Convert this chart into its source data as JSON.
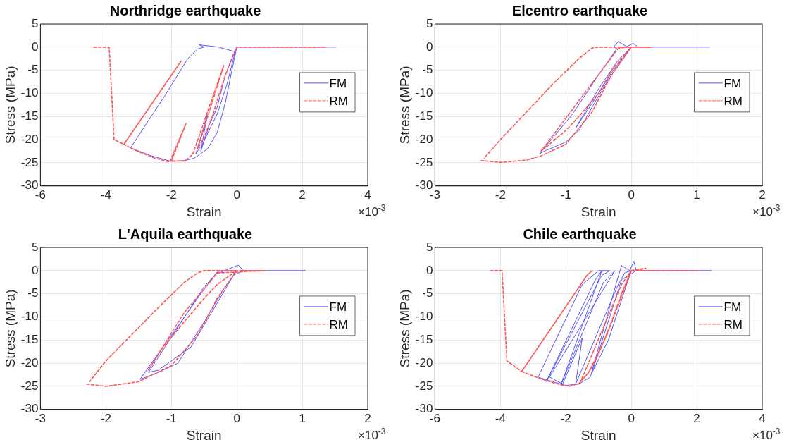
{
  "chart_data": [
    {
      "type": "line",
      "title": "Northridge earthquake",
      "xlabel": "Strain",
      "ylabel": "Stress (MPa)",
      "annotations": [
        "×10$^{-3}$"
      ],
      "xlim": [
        -6,
        4
      ],
      "xticks": [
        -6,
        -4,
        -2,
        0,
        2,
        4
      ],
      "ylim": [
        -30,
        5
      ],
      "yticks": [
        -30,
        -25,
        -20,
        -15,
        -10,
        -5,
        0,
        5
      ],
      "grid": true,
      "legend": "right",
      "series": [
        {
          "name": "FM",
          "color": "#5555ff",
          "line_style": "solid",
          "x": [
            3.05,
            0,
            -0.15,
            -0.35,
            -0.6,
            -0.9,
            -1.3,
            -1.6,
            -2.0,
            -2.6,
            -3.25,
            -2.2,
            -1.5,
            -1.2,
            -1.0,
            -1.15,
            -0.55,
            -0.05,
            -0.3,
            -0.6,
            -0.85,
            -1.05,
            -1.25,
            -0.9,
            -1.1,
            -0.85,
            -0.6,
            -0.35,
            0
          ],
          "values": [
            0,
            0,
            -5,
            -12,
            -18.5,
            -22,
            -24,
            -24.5,
            -24.7,
            -23.5,
            -21.8,
            -10.5,
            -2.5,
            -0.4,
            0,
            0.5,
            0,
            -1,
            -8,
            -14.5,
            -18,
            -21,
            -23,
            -14.6,
            -22.5,
            -17,
            -13,
            -6,
            0
          ]
        },
        {
          "name": "RM",
          "color": "#ff5555",
          "line_style": "dashed",
          "x": [
            2.7,
            0,
            -0.1,
            -0.4,
            -0.75,
            -1.0,
            -1.2,
            -0.4,
            -1.35,
            -1.6,
            -2.0,
            -1.55,
            -2.05,
            -2.5,
            -3.0,
            -3.45,
            -1.7,
            -3.45,
            -3.75,
            -3.9,
            -4.4
          ],
          "values": [
            0,
            0,
            -1.5,
            -7,
            -15,
            -19.5,
            -22,
            -4,
            -23.2,
            -24.6,
            -24.6,
            -16.5,
            -24.8,
            -24,
            -22.6,
            -21,
            -3,
            -21,
            -20,
            0,
            0
          ]
        }
      ]
    },
    {
      "type": "line",
      "title": "Elcentro earthquake",
      "xlabel": "Strain",
      "ylabel": "Stress (MPa)",
      "annotations": [
        "×10$^{-3}$"
      ],
      "xlim": [
        -3,
        2
      ],
      "xticks": [
        -3,
        -2,
        -1,
        0,
        1,
        2
      ],
      "ylim": [
        -30,
        5
      ],
      "yticks": [
        -30,
        -25,
        -20,
        -15,
        -10,
        -5,
        0,
        5
      ],
      "grid": true,
      "legend": "right",
      "series": [
        {
          "name": "FM",
          "color": "#5555ff",
          "line_style": "solid",
          "x": [
            1.2,
            0.1,
            0.03,
            -0.07,
            -0.2,
            -0.27,
            -0.22,
            -0.5,
            -0.9,
            -1.4,
            -1.3,
            -1.0,
            -0.8,
            -0.6,
            -0.35,
            0,
            -0.2,
            -0.5,
            -0.85,
            -0.5,
            -0.3,
            0
          ],
          "values": [
            0,
            0,
            0.8,
            0.1,
            1.2,
            0,
            -0.3,
            -6,
            -14.5,
            -23,
            -22.3,
            -20.5,
            -18,
            -13,
            -7,
            0,
            -2.8,
            -9,
            -17.5,
            -10,
            -5.5,
            0
          ]
        },
        {
          "name": "RM",
          "color": "#ff5555",
          "line_style": "dashed",
          "x": [
            -2.3,
            -2.0,
            -1.6,
            -1.38,
            -1.0,
            -0.6,
            -0.3,
            0,
            -0.3,
            -0.5,
            -0.8,
            -1.0,
            -1.38,
            -0.2,
            -0.1,
            0.3,
            -0.5,
            -0.6,
            -0.8,
            -1.2,
            -2.0,
            -2.25
          ],
          "values": [
            -24.5,
            -24.9,
            -24.4,
            -23.5,
            -21,
            -14,
            -6,
            0,
            -5,
            -10,
            -15,
            -18,
            -22.5,
            -0.3,
            0,
            0,
            0,
            -0.2,
            -2.5,
            -8,
            -20,
            -24
          ]
        }
      ]
    },
    {
      "type": "line",
      "title": "L'Aquila earthquake",
      "xlabel": "Strain",
      "ylabel": "Stress (MPa)",
      "annotations": [
        "×10$^{-3}$"
      ],
      "xlim": [
        -3,
        2
      ],
      "xticks": [
        -3,
        -2,
        -1,
        0,
        1,
        2
      ],
      "ylim": [
        -30,
        5
      ],
      "yticks": [
        -30,
        -25,
        -20,
        -15,
        -10,
        -5,
        0,
        5
      ],
      "grid": true,
      "legend": "right",
      "series": [
        {
          "name": "FM",
          "color": "#5555ff",
          "line_style": "solid",
          "x": [
            1.05,
            0.1,
            0.02,
            -0.25,
            -0.3,
            -0.5,
            -0.9,
            -1.48,
            -1.2,
            -0.9,
            -0.7,
            -0.45,
            -0.2,
            0,
            -0.28,
            -0.5,
            -1.35,
            -1.2,
            -0.7,
            -0.3,
            -0.05,
            0.1
          ],
          "values": [
            0,
            0,
            1.2,
            -0.4,
            -0.3,
            -4,
            -12,
            -23.5,
            -22,
            -20,
            -15.5,
            -10,
            -4,
            0,
            -0.1,
            -3.5,
            -22,
            -21.5,
            -16.5,
            -7,
            -1,
            0
          ]
        },
        {
          "name": "RM",
          "color": "#ff5555",
          "line_style": "dashed",
          "x": [
            -2.3,
            -2.0,
            -1.5,
            -1.0,
            -0.6,
            -0.3,
            0,
            -0.3,
            -0.5,
            -0.8,
            -1.15,
            -1.35,
            -0.8,
            -0.5,
            -0.3,
            0.45,
            -0.5,
            -0.6,
            -0.8,
            -1.2,
            -2.0,
            -2.25
          ],
          "values": [
            -24.5,
            -25,
            -24,
            -20.5,
            -14,
            -6,
            0,
            -3,
            -6,
            -11,
            -17,
            -21.5,
            -9,
            -4,
            -0.5,
            0,
            0,
            -0.5,
            -2.5,
            -8,
            -19.5,
            -24
          ]
        }
      ]
    },
    {
      "type": "line",
      "title": "Chile earthquake",
      "xlabel": "Strain",
      "ylabel": "Stress (MPa)",
      "annotations": [
        "×10$^{-3}$"
      ],
      "xlim": [
        -6,
        4
      ],
      "xticks": [
        -6,
        -4,
        -2,
        0,
        2,
        4
      ],
      "ylim": [
        -30,
        5
      ],
      "yticks": [
        -30,
        -25,
        -20,
        -15,
        -10,
        -5,
        0,
        5
      ],
      "grid": true,
      "legend": "right",
      "series": [
        {
          "name": "FM",
          "color": "#5555ff",
          "line_style": "solid",
          "x": [
            2.45,
            0.15,
            0.08,
            -0.05,
            -0.3,
            -0.45,
            -0.9,
            -1.25,
            -1.6,
            -2.0,
            -2.4,
            -2.85,
            -1.5,
            -1.0,
            -0.65,
            -0.9,
            -2.6,
            -1.1,
            -0.9,
            -2.15,
            -0.85,
            -0.5,
            -2.5,
            -2.1,
            -1.5,
            -1.7,
            -0.4,
            -0.2,
            0,
            -0.7,
            -1.2,
            -0.3,
            0.15
          ],
          "values": [
            0,
            0,
            2,
            0,
            1.1,
            -2.5,
            -14,
            -23,
            -24.5,
            -24.8,
            -24,
            -23,
            -3,
            0,
            0,
            -1,
            -24,
            -2,
            0,
            -24.7,
            -2.5,
            0,
            -23,
            -24.5,
            -14.6,
            -24.5,
            -3,
            -0.5,
            0,
            -15,
            -22,
            -2,
            0
          ]
        },
        {
          "name": "RM",
          "color": "#ff5555",
          "line_style": "dashed",
          "x": [
            2.0,
            0.15,
            0.45,
            0,
            -0.3,
            -1.55,
            -1.3,
            -0.75,
            0,
            -0.3,
            -0.6,
            -1.0,
            -1.3,
            -1.6,
            -1.9,
            -2.2,
            -2.8,
            -3.35,
            -1.35,
            -1.2,
            -1.35,
            -3.35,
            -3.8,
            -3.95,
            -4.3
          ],
          "values": [
            0,
            0,
            0.5,
            0,
            -3,
            -24,
            -22,
            -14,
            0,
            -5,
            -11,
            -18,
            -22,
            -24.4,
            -25,
            -24.6,
            -23.3,
            -21.8,
            -1,
            0,
            -1,
            -21.8,
            -19.5,
            0,
            0
          ]
        }
      ]
    }
  ]
}
